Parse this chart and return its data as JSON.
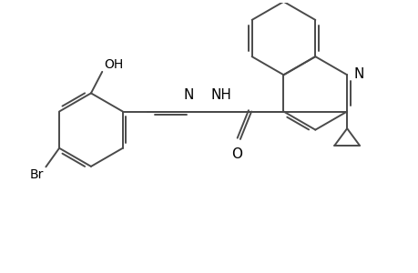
{
  "background_color": "#ffffff",
  "line_color": "#4a4a4a",
  "text_color": "#000000",
  "font_size": 10,
  "line_width": 1.4,
  "figsize": [
    4.6,
    3.0
  ],
  "dpi": 100,
  "xlim": [
    0,
    9.2
  ],
  "ylim": [
    0,
    6.0
  ]
}
